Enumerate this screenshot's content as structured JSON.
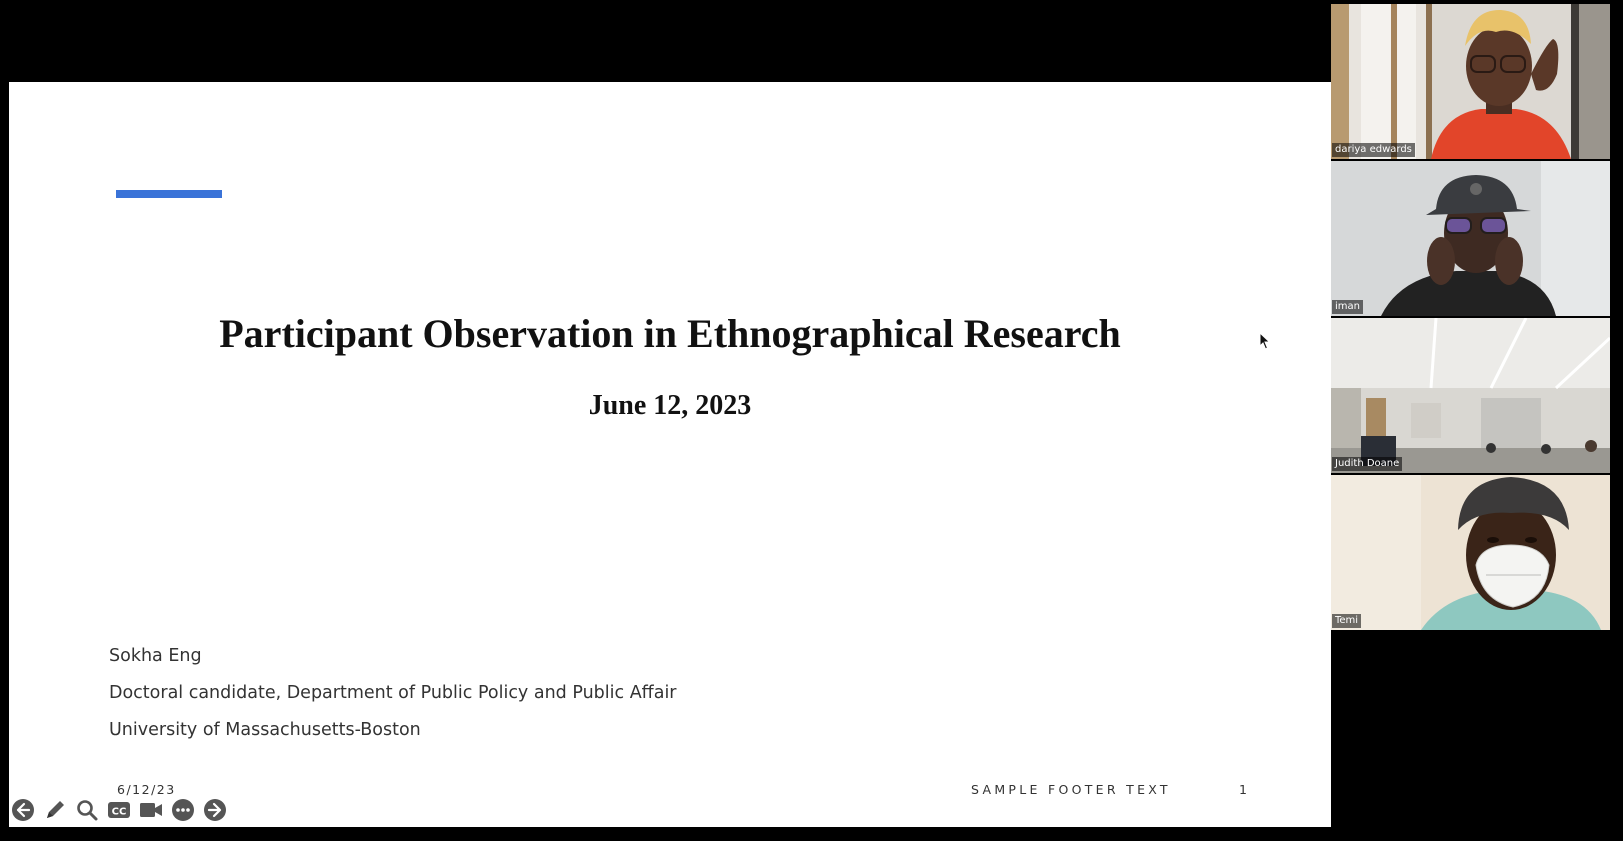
{
  "slide": {
    "title": "Participant Observation in Ethnographical Research",
    "date": "June 12, 2023",
    "author": {
      "name": "Sokha Eng",
      "position": "Doctoral candidate, Department of Public Policy and Public Affair",
      "institution": "University of Massachusetts-Boston"
    },
    "footer": {
      "date": "6/12/23",
      "text": "SAMPLE FOOTER TEXT",
      "page_number": "1"
    },
    "accent_color": "#3a73d8"
  },
  "toolbar": {
    "buttons": [
      {
        "name": "previous-slide",
        "icon": "arrow-left-icon"
      },
      {
        "name": "pen",
        "icon": "pen-icon"
      },
      {
        "name": "zoom",
        "icon": "magnifier-icon"
      },
      {
        "name": "captions",
        "icon": "cc-icon",
        "label": "CC"
      },
      {
        "name": "camera",
        "icon": "video-camera-icon"
      },
      {
        "name": "more",
        "icon": "more-options-icon"
      },
      {
        "name": "next-slide",
        "icon": "arrow-right-icon"
      }
    ]
  },
  "participants": [
    {
      "name": "dariya edwards",
      "icon": "participant-video"
    },
    {
      "name": "iman",
      "icon": "participant-video"
    },
    {
      "name": "Judith Doane",
      "icon": "participant-video"
    },
    {
      "name": "Temi",
      "icon": "participant-video"
    }
  ]
}
